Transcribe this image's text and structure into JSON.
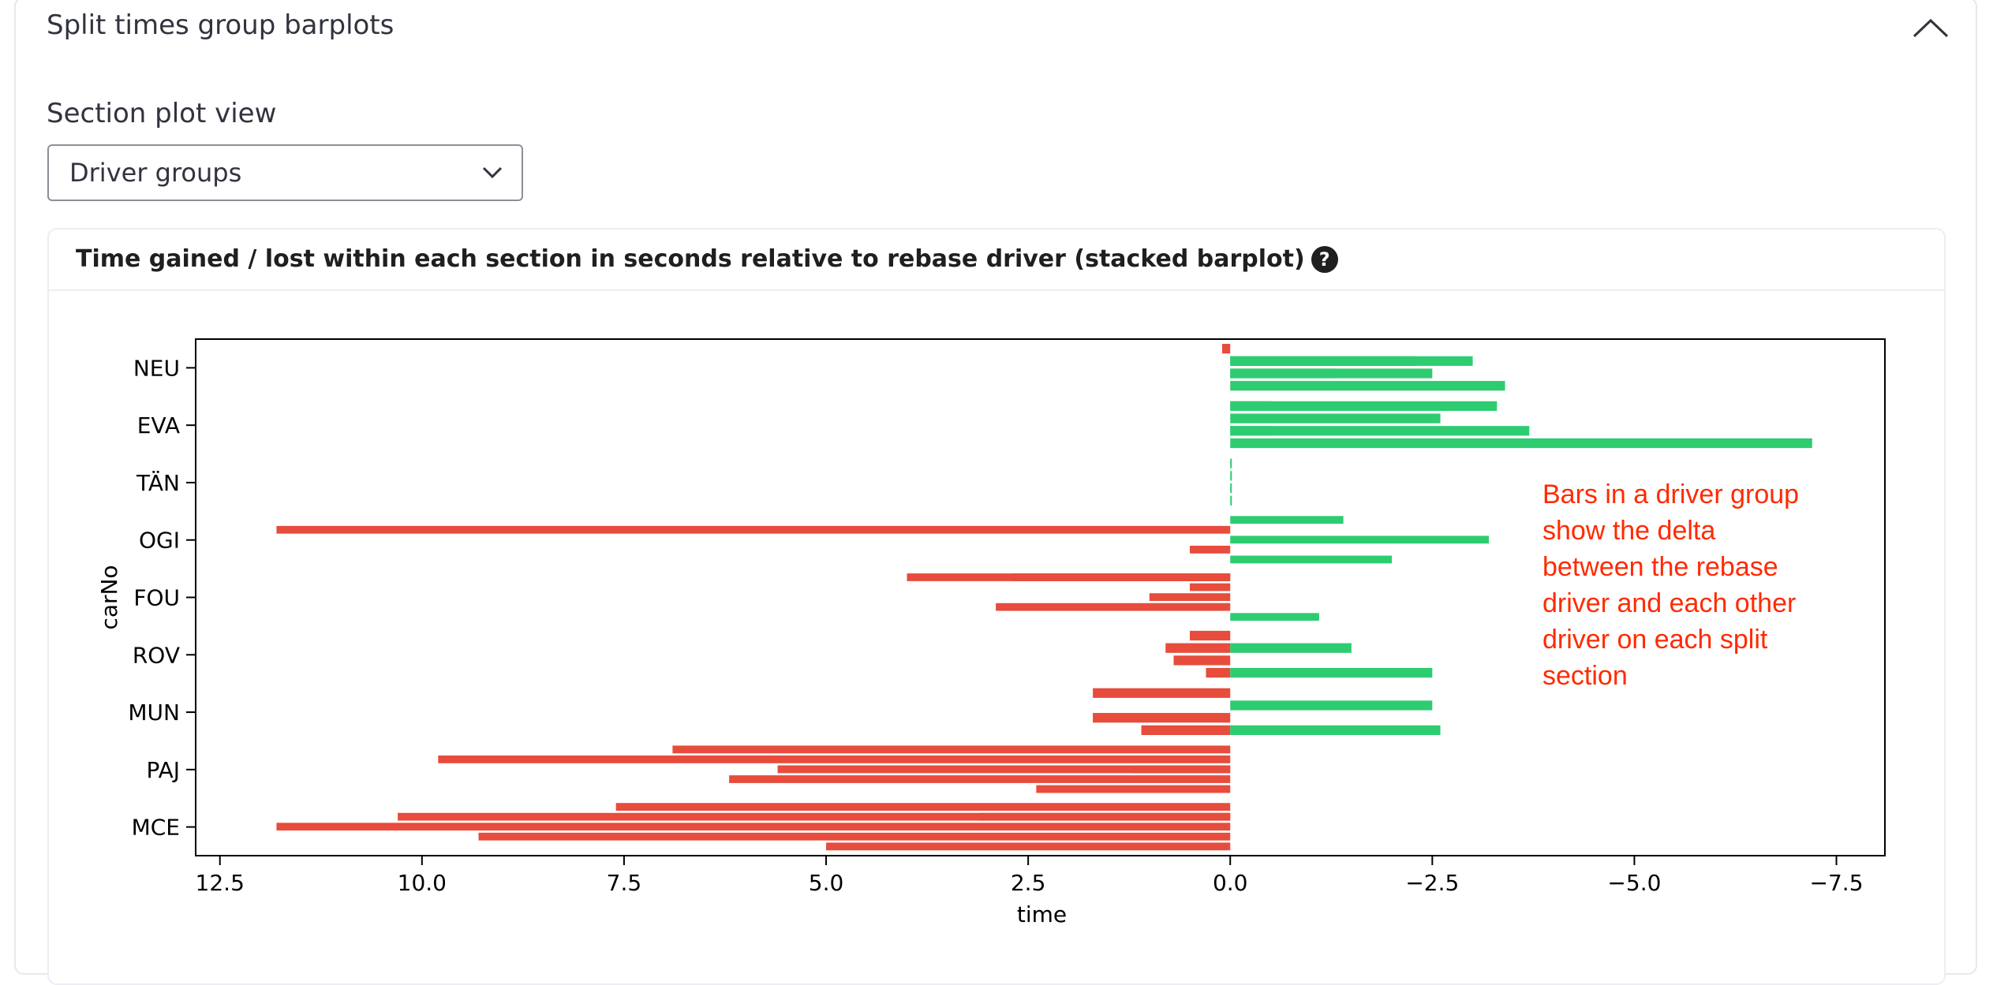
{
  "expander": {
    "title": "Split times group barplots"
  },
  "select": {
    "label": "Section plot view",
    "value": "Driver groups"
  },
  "card": {
    "title": "Time gained / lost within each section in seconds relative to rebase driver (stacked barplot)",
    "help_symbol": "?"
  },
  "annotation": {
    "lines": [
      "Bars in a driver group",
      "show the delta",
      "between the rebase",
      "driver and each other",
      "driver on each split",
      "section"
    ]
  },
  "chart_data": {
    "type": "bar",
    "orientation": "horizontal",
    "xlabel": "time",
    "ylabel": "carNo",
    "xlim": [
      12.8,
      -8.1
    ],
    "x_inverted": true,
    "xticks": [
      12.5,
      10.0,
      7.5,
      5.0,
      2.5,
      0.0,
      -2.5,
      -5.0,
      -7.5
    ],
    "xtick_labels": [
      "12.5",
      "10.0",
      "7.5",
      "5.0",
      "2.5",
      "0.0",
      "−2.5",
      "−5.0",
      "−7.5"
    ],
    "categories": [
      "NEU",
      "EVA",
      "TÄN",
      "OGI",
      "FOU",
      "ROV",
      "MUN",
      "PAJ",
      "MCE"
    ],
    "colors": {
      "positive": "#e74c3c",
      "negative": "#2ecc71"
    },
    "groups": [
      {
        "category": "NEU",
        "sections": [
          [
            0.1
          ],
          [
            -2.3,
            -3.0
          ],
          [
            -1.3,
            -2.5
          ],
          [
            -3.4
          ]
        ]
      },
      {
        "category": "EVA",
        "sections": [
          [
            -0.5,
            -3.3
          ],
          [
            -2.6
          ],
          [
            -0.5,
            -3.7
          ],
          [
            -7.2
          ]
        ]
      },
      {
        "category": "TÄN",
        "sections": [
          [
            -0.02
          ],
          [
            -0.02
          ],
          [
            -0.02
          ],
          [
            -0.02
          ]
        ]
      },
      {
        "category": "OGI",
        "sections": [
          [
            -1.4
          ],
          [
            11.8
          ],
          [
            -3.2
          ],
          [
            0.5
          ],
          [
            -2.0
          ]
        ]
      },
      {
        "category": "FOU",
        "sections": [
          [
            4.0,
            2.7
          ],
          [
            0.5
          ],
          [
            1.0
          ],
          [
            2.9
          ],
          [
            -1.1
          ]
        ]
      },
      {
        "category": "ROV",
        "sections": [
          [
            0.5
          ],
          [
            0.8,
            -1.5
          ],
          [
            0.7
          ],
          [
            0.3,
            -2.5
          ]
        ]
      },
      {
        "category": "MUN",
        "sections": [
          [
            1.7
          ],
          [
            -2.5
          ],
          [
            1.7
          ],
          [
            1.1,
            -2.6
          ]
        ]
      },
      {
        "category": "PAJ",
        "sections": [
          [
            6.9
          ],
          [
            9.8
          ],
          [
            1.2,
            5.6
          ],
          [
            6.2
          ],
          [
            2.4
          ]
        ]
      },
      {
        "category": "MCE",
        "sections": [
          [
            7.6
          ],
          [
            10.3,
            3.1
          ],
          [
            11.8
          ],
          [
            9.3
          ],
          [
            5.0
          ]
        ]
      }
    ]
  }
}
